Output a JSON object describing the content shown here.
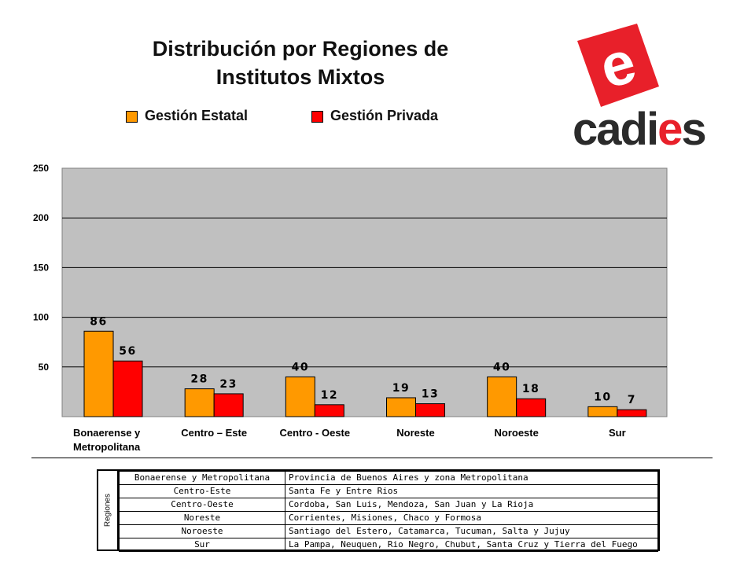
{
  "header": {
    "title_line1": "Distribución por Regiones de",
    "title_line2": "Institutos Mixtos"
  },
  "logo": {
    "letter": "e",
    "word": "cadies",
    "letter_bg": "#e8202a",
    "text_color": "#2b2b2b",
    "accent": "#e8202a"
  },
  "colors": {
    "estatal": "#ff9900",
    "privada": "#ff0000",
    "plot_bg": "#c0c0c0"
  },
  "chart_data": {
    "type": "bar",
    "title": "Distribución por Regiones de Institutos Mixtos",
    "categories": [
      "Bonaerense y Metropolitana",
      "Centro – Este",
      "Centro - Oeste",
      "Noreste",
      "Noroeste",
      "Sur"
    ],
    "category_lines": [
      [
        "Bonaerense y",
        "Metropolitana"
      ],
      [
        "Centro – Este"
      ],
      [
        "Centro - Oeste"
      ],
      [
        "Noreste"
      ],
      [
        "Noroeste"
      ],
      [
        "Sur"
      ]
    ],
    "series": [
      {
        "name": "Gestión Estatal",
        "color": "#ff9900",
        "values": [
          86,
          28,
          40,
          19,
          40,
          10
        ]
      },
      {
        "name": "Gestión Privada",
        "color": "#ff0000",
        "values": [
          56,
          23,
          12,
          13,
          18,
          7
        ]
      }
    ],
    "value_labels": [
      [
        "86",
        "56"
      ],
      [
        "28",
        "23"
      ],
      [
        "40",
        "12"
      ],
      [
        "19",
        "13"
      ],
      [
        "40",
        "18"
      ],
      [
        "10",
        "7"
      ]
    ],
    "ylim": [
      0,
      250
    ],
    "yticks": [
      50,
      100,
      150,
      200,
      250
    ],
    "grid": true,
    "legend": "top"
  },
  "regions_table": {
    "side_label": "Regiones",
    "rows": [
      {
        "region": "Bonaerense y Metropolitana",
        "provinces": "Provincia de Buenos Aires y zona Metropolitana"
      },
      {
        "region": "Centro-Este",
        "provinces": "Santa Fe y Entre Rios"
      },
      {
        "region": "Centro-Oeste",
        "provinces": "Cordoba, San Luis, Mendoza, San Juan y La Rioja"
      },
      {
        "region": "Noreste",
        "provinces": "Corrientes, Misiones, Chaco y Formosa"
      },
      {
        "region": "Noroeste",
        "provinces": "Santiago del Estero, Catamarca, Tucuman, Salta y Jujuy"
      },
      {
        "region": "Sur",
        "provinces": "La Pampa, Neuquen, Rio Negro, Chubut, Santa Cruz y Tierra del Fuego"
      }
    ]
  }
}
